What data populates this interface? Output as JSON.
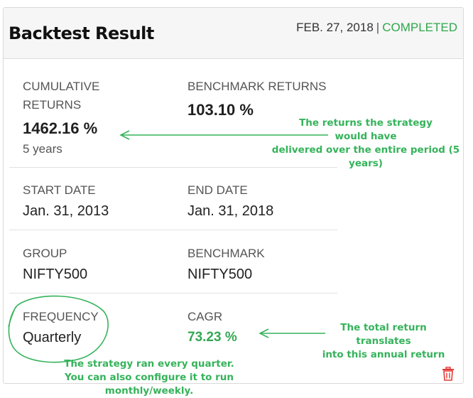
{
  "header": {
    "title": "Backtest Result",
    "date": "FEB. 27, 2018",
    "separator": "|",
    "status": "COMPLETED"
  },
  "metrics": {
    "cumulative_returns": {
      "label_line1": "CUMULATIVE",
      "label_line2": "RETURNS",
      "value": "1462.16 %",
      "sub": "5 years"
    },
    "benchmark_returns": {
      "label": "BENCHMARK RETURNS",
      "value": "103.10 %"
    },
    "start_date": {
      "label": "START DATE",
      "value": "Jan. 31, 2013"
    },
    "end_date": {
      "label": "END DATE",
      "value": "Jan. 31, 2018"
    },
    "group": {
      "label": "GROUP",
      "value": "NIFTY500"
    },
    "benchmark": {
      "label": "BENCHMARK",
      "value": "NIFTY500"
    },
    "frequency": {
      "label": "FREQUENCY",
      "value": "Quarterly"
    },
    "cagr": {
      "label": "CAGR",
      "value": "73.23 %"
    }
  },
  "annotations": {
    "returns_note": [
      "The returns the strategy",
      "would have",
      "delivered over the entire period (5 years)"
    ],
    "cagr_note": [
      "The total return translates",
      "into this annual return"
    ],
    "frequency_note": [
      "The strategy ran every quarter.",
      "You can also configure it to run monthly/weekly."
    ]
  },
  "colors": {
    "status_green": "#2ea84b",
    "annotation_green": "#35b35a",
    "delete_red": "#e53935"
  },
  "icons": {
    "delete": "trash-icon"
  }
}
